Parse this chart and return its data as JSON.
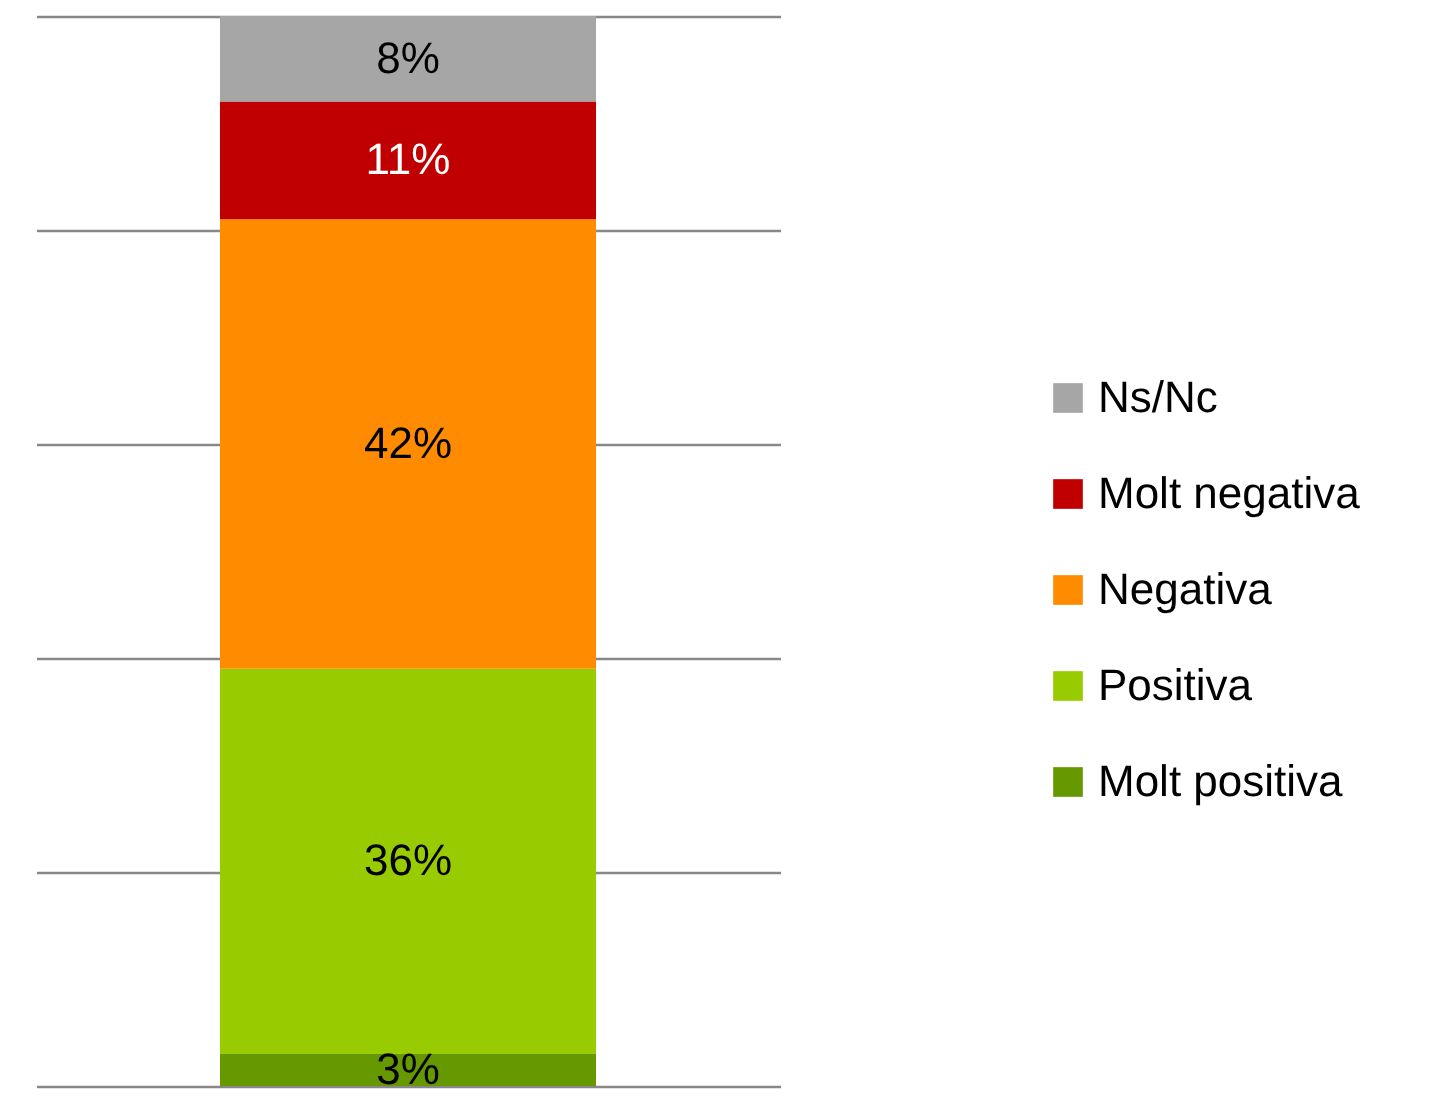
{
  "chart_data": {
    "type": "bar",
    "stacked": true,
    "categories": [
      null
    ],
    "series": [
      {
        "name": "Molt positiva",
        "color": "#669900",
        "values": [
          3
        ],
        "value_labels": [
          "3%"
        ]
      },
      {
        "name": "Positiva",
        "color": "#99cc00",
        "values": [
          36
        ],
        "value_labels": [
          "36%"
        ]
      },
      {
        "name": "Negativa",
        "color": "#ff8c00",
        "values": [
          42
        ],
        "value_labels": [
          "42%"
        ]
      },
      {
        "name": "Molt negativa",
        "color": "#c00000",
        "values": [
          11
        ],
        "value_labels": [
          "11%"
        ]
      },
      {
        "name": "Ns/Nc",
        "color": "#a6a6a6",
        "values": [
          8
        ],
        "value_labels": [
          "8%"
        ]
      }
    ],
    "grid": "y",
    "tick_labels": false,
    "legend": "right"
  }
}
